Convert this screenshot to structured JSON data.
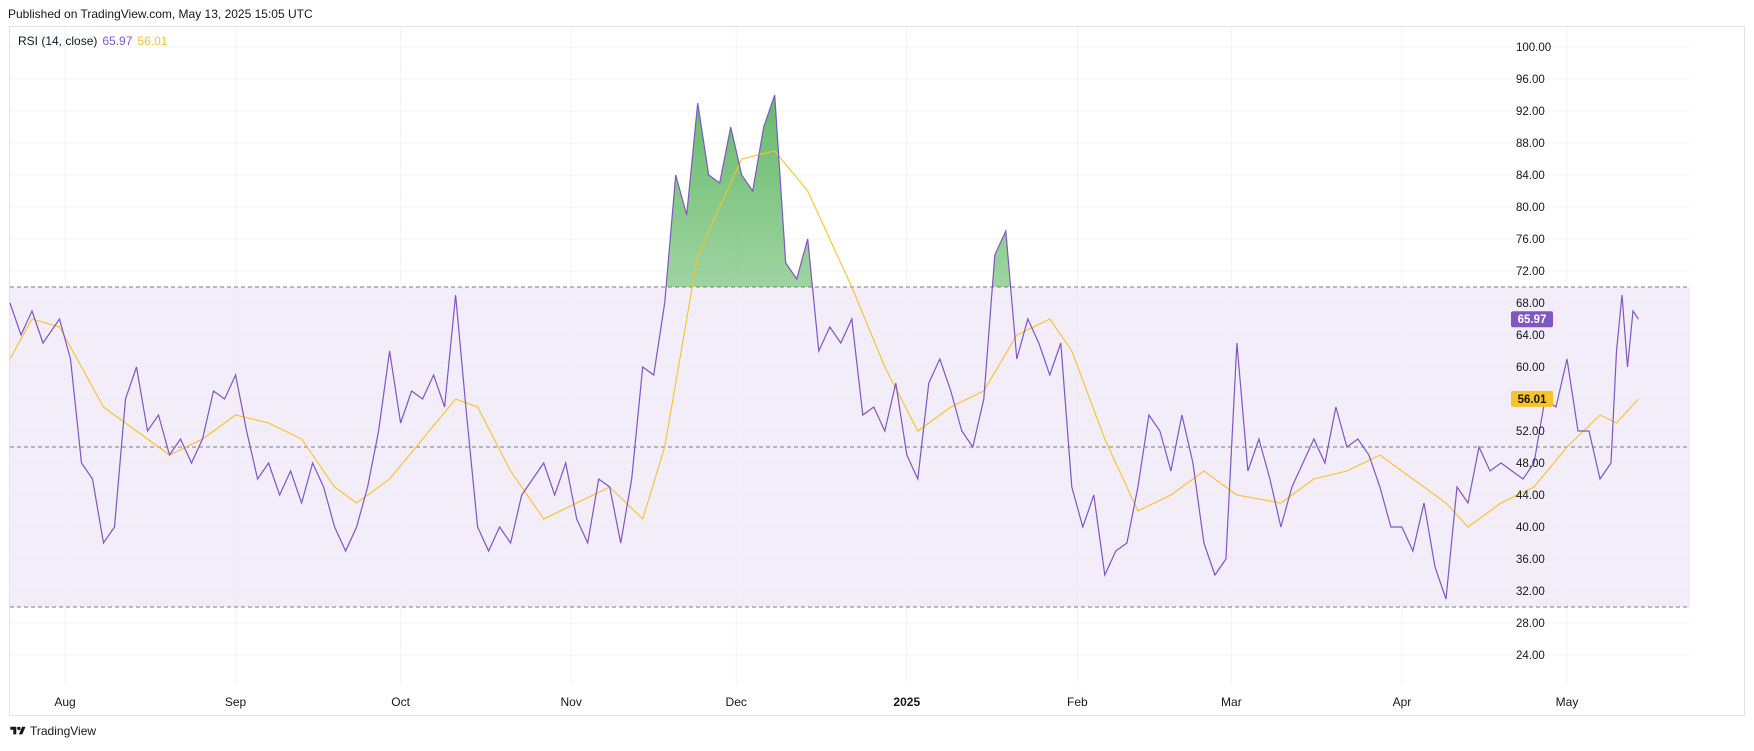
{
  "header": {
    "published": "Published on TradingView.com, May 13, 2025 15:05 UTC"
  },
  "legend": {
    "name": "RSI (14, close)",
    "rsi_value": "65.97",
    "ma_value": "56.01"
  },
  "footer": {
    "brand": "TradingView",
    "logo_icon": "tradingview-logo-icon"
  },
  "colors": {
    "rsi": "#7e57c2",
    "ma": "#f7c325",
    "band_fill": "#ede7f6",
    "overbought_fill": "#4caf50",
    "grid": "#f0f3fa",
    "band_line": "#787b86"
  },
  "chart_data": {
    "type": "line",
    "title": "RSI (14, close)",
    "ylim": [
      24,
      100
    ],
    "y_ticks": [
      "100.00",
      "96.00",
      "92.00",
      "88.00",
      "84.00",
      "80.00",
      "76.00",
      "72.00",
      "68.00",
      "64.00",
      "60.00",
      "56.00",
      "52.00",
      "48.00",
      "44.00",
      "40.00",
      "36.00",
      "32.00",
      "28.00",
      "24.00"
    ],
    "x_ticks": [
      {
        "label": "Aug",
        "bold": false
      },
      {
        "label": "Sep",
        "bold": false
      },
      {
        "label": "Oct",
        "bold": false
      },
      {
        "label": "Nov",
        "bold": false
      },
      {
        "label": "Dec",
        "bold": false
      },
      {
        "label": "2025",
        "bold": true
      },
      {
        "label": "Feb",
        "bold": false
      },
      {
        "label": "Mar",
        "bold": false
      },
      {
        "label": "Apr",
        "bold": false
      },
      {
        "label": "May",
        "bold": false
      }
    ],
    "tick_dates": [
      "2024-08-01",
      "2024-09-01",
      "2024-10-01",
      "2024-11-01",
      "2024-12-01",
      "2025-01-01",
      "2025-02-01",
      "2025-03-01",
      "2025-04-01",
      "2025-05-01"
    ],
    "bands": {
      "upper": 70,
      "middle": 50,
      "lower": 30
    },
    "grid": true,
    "series": [
      {
        "name": "RSI",
        "last_value": "65.97",
        "points": [
          [
            "2024-07-22",
            68
          ],
          [
            "2024-07-24",
            64
          ],
          [
            "2024-07-26",
            67
          ],
          [
            "2024-07-28",
            63
          ],
          [
            "2024-07-31",
            66
          ],
          [
            "2024-08-02",
            61
          ],
          [
            "2024-08-04",
            48
          ],
          [
            "2024-08-06",
            46
          ],
          [
            "2024-08-08",
            38
          ],
          [
            "2024-08-10",
            40
          ],
          [
            "2024-08-12",
            56
          ],
          [
            "2024-08-14",
            60
          ],
          [
            "2024-08-16",
            52
          ],
          [
            "2024-08-18",
            54
          ],
          [
            "2024-08-20",
            49
          ],
          [
            "2024-08-22",
            51
          ],
          [
            "2024-08-24",
            48
          ],
          [
            "2024-08-26",
            51
          ],
          [
            "2024-08-28",
            57
          ],
          [
            "2024-08-30",
            56
          ],
          [
            "2024-09-01",
            59
          ],
          [
            "2024-09-03",
            52
          ],
          [
            "2024-09-05",
            46
          ],
          [
            "2024-09-07",
            48
          ],
          [
            "2024-09-09",
            44
          ],
          [
            "2024-09-11",
            47
          ],
          [
            "2024-09-13",
            43
          ],
          [
            "2024-09-15",
            48
          ],
          [
            "2024-09-17",
            45
          ],
          [
            "2024-09-19",
            40
          ],
          [
            "2024-09-21",
            37
          ],
          [
            "2024-09-23",
            40
          ],
          [
            "2024-09-25",
            45
          ],
          [
            "2024-09-27",
            52
          ],
          [
            "2024-09-29",
            62
          ],
          [
            "2024-10-01",
            53
          ],
          [
            "2024-10-03",
            57
          ],
          [
            "2024-10-05",
            56
          ],
          [
            "2024-10-07",
            59
          ],
          [
            "2024-10-09",
            55
          ],
          [
            "2024-10-11",
            69
          ],
          [
            "2024-10-13",
            54
          ],
          [
            "2024-10-15",
            40
          ],
          [
            "2024-10-17",
            37
          ],
          [
            "2024-10-19",
            40
          ],
          [
            "2024-10-21",
            38
          ],
          [
            "2024-10-23",
            44
          ],
          [
            "2024-10-25",
            46
          ],
          [
            "2024-10-27",
            48
          ],
          [
            "2024-10-29",
            44
          ],
          [
            "2024-10-31",
            48
          ],
          [
            "2024-11-02",
            41
          ],
          [
            "2024-11-04",
            38
          ],
          [
            "2024-11-06",
            46
          ],
          [
            "2024-11-08",
            45
          ],
          [
            "2024-11-10",
            38
          ],
          [
            "2024-11-12",
            46
          ],
          [
            "2024-11-14",
            60
          ],
          [
            "2024-11-16",
            59
          ],
          [
            "2024-11-18",
            68
          ],
          [
            "2024-11-20",
            84
          ],
          [
            "2024-11-22",
            79
          ],
          [
            "2024-11-24",
            93
          ],
          [
            "2024-11-26",
            84
          ],
          [
            "2024-11-28",
            83
          ],
          [
            "2024-11-30",
            90
          ],
          [
            "2024-12-02",
            84
          ],
          [
            "2024-12-04",
            82
          ],
          [
            "2024-12-06",
            90
          ],
          [
            "2024-12-08",
            94
          ],
          [
            "2024-12-10",
            73
          ],
          [
            "2024-12-12",
            71
          ],
          [
            "2024-12-14",
            76
          ],
          [
            "2024-12-16",
            62
          ],
          [
            "2024-12-18",
            65
          ],
          [
            "2024-12-20",
            63
          ],
          [
            "2024-12-22",
            66
          ],
          [
            "2024-12-24",
            54
          ],
          [
            "2024-12-26",
            55
          ],
          [
            "2024-12-28",
            52
          ],
          [
            "2024-12-30",
            58
          ],
          [
            "2025-01-01",
            49
          ],
          [
            "2025-01-03",
            46
          ],
          [
            "2025-01-05",
            58
          ],
          [
            "2025-01-07",
            61
          ],
          [
            "2025-01-09",
            57
          ],
          [
            "2025-01-11",
            52
          ],
          [
            "2025-01-13",
            50
          ],
          [
            "2025-01-15",
            56
          ],
          [
            "2025-01-17",
            74
          ],
          [
            "2025-01-19",
            77
          ],
          [
            "2025-01-21",
            61
          ],
          [
            "2025-01-23",
            66
          ],
          [
            "2025-01-25",
            63
          ],
          [
            "2025-01-27",
            59
          ],
          [
            "2025-01-29",
            63
          ],
          [
            "2025-01-31",
            45
          ],
          [
            "2025-02-02",
            40
          ],
          [
            "2025-02-04",
            44
          ],
          [
            "2025-02-06",
            34
          ],
          [
            "2025-02-08",
            37
          ],
          [
            "2025-02-10",
            38
          ],
          [
            "2025-02-12",
            45
          ],
          [
            "2025-02-14",
            54
          ],
          [
            "2025-02-16",
            52
          ],
          [
            "2025-02-18",
            47
          ],
          [
            "2025-02-20",
            54
          ],
          [
            "2025-02-22",
            48
          ],
          [
            "2025-02-24",
            38
          ],
          [
            "2025-02-26",
            34
          ],
          [
            "2025-02-28",
            36
          ],
          [
            "2025-03-02",
            63
          ],
          [
            "2025-03-04",
            47
          ],
          [
            "2025-03-06",
            51
          ],
          [
            "2025-03-08",
            46
          ],
          [
            "2025-03-10",
            40
          ],
          [
            "2025-03-12",
            45
          ],
          [
            "2025-03-14",
            48
          ],
          [
            "2025-03-16",
            51
          ],
          [
            "2025-03-18",
            48
          ],
          [
            "2025-03-20",
            55
          ],
          [
            "2025-03-22",
            50
          ],
          [
            "2025-03-24",
            51
          ],
          [
            "2025-03-26",
            49
          ],
          [
            "2025-03-28",
            45
          ],
          [
            "2025-03-30",
            40
          ],
          [
            "2025-04-01",
            40
          ],
          [
            "2025-04-03",
            37
          ],
          [
            "2025-04-05",
            43
          ],
          [
            "2025-04-07",
            35
          ],
          [
            "2025-04-09",
            31
          ],
          [
            "2025-04-11",
            45
          ],
          [
            "2025-04-13",
            43
          ],
          [
            "2025-04-15",
            50
          ],
          [
            "2025-04-17",
            47
          ],
          [
            "2025-04-19",
            48
          ],
          [
            "2025-04-21",
            47
          ],
          [
            "2025-04-23",
            46
          ],
          [
            "2025-04-25",
            48
          ],
          [
            "2025-04-27",
            56
          ],
          [
            "2025-04-29",
            55
          ],
          [
            "2025-05-01",
            61
          ],
          [
            "2025-05-03",
            52
          ],
          [
            "2025-05-05",
            52
          ],
          [
            "2025-05-07",
            46
          ],
          [
            "2025-05-09",
            48
          ],
          [
            "2025-05-10",
            62
          ],
          [
            "2025-05-11",
            69
          ],
          [
            "2025-05-12",
            60
          ],
          [
            "2025-05-13",
            67
          ],
          [
            "2025-05-14",
            65.97
          ]
        ]
      },
      {
        "name": "RSI-based MA",
        "last_value": "56.01",
        "points": [
          [
            "2024-07-22",
            61
          ],
          [
            "2024-07-26",
            66
          ],
          [
            "2024-07-31",
            65
          ],
          [
            "2024-08-04",
            60
          ],
          [
            "2024-08-08",
            55
          ],
          [
            "2024-08-14",
            52
          ],
          [
            "2024-08-20",
            49
          ],
          [
            "2024-08-26",
            51
          ],
          [
            "2024-09-01",
            54
          ],
          [
            "2024-09-07",
            53
          ],
          [
            "2024-09-13",
            51
          ],
          [
            "2024-09-19",
            45
          ],
          [
            "2024-09-23",
            43
          ],
          [
            "2024-09-29",
            46
          ],
          [
            "2024-10-05",
            51
          ],
          [
            "2024-10-11",
            56
          ],
          [
            "2024-10-15",
            55
          ],
          [
            "2024-10-21",
            47
          ],
          [
            "2024-10-27",
            41
          ],
          [
            "2024-11-02",
            43
          ],
          [
            "2024-11-08",
            45
          ],
          [
            "2024-11-14",
            41
          ],
          [
            "2024-11-18",
            50
          ],
          [
            "2024-11-24",
            74
          ],
          [
            "2024-12-02",
            86
          ],
          [
            "2024-12-08",
            87
          ],
          [
            "2024-12-14",
            82
          ],
          [
            "2024-12-22",
            70
          ],
          [
            "2024-12-28",
            60
          ],
          [
            "2025-01-03",
            52
          ],
          [
            "2025-01-09",
            55
          ],
          [
            "2025-01-15",
            57
          ],
          [
            "2025-01-21",
            64
          ],
          [
            "2025-01-27",
            66
          ],
          [
            "2025-01-31",
            62
          ],
          [
            "2025-02-06",
            51
          ],
          [
            "2025-02-12",
            42
          ],
          [
            "2025-02-18",
            44
          ],
          [
            "2025-02-24",
            47
          ],
          [
            "2025-03-02",
            44
          ],
          [
            "2025-03-10",
            43
          ],
          [
            "2025-03-16",
            46
          ],
          [
            "2025-03-22",
            47
          ],
          [
            "2025-03-28",
            49
          ],
          [
            "2025-04-03",
            46
          ],
          [
            "2025-04-09",
            43
          ],
          [
            "2025-04-13",
            40
          ],
          [
            "2025-04-19",
            43
          ],
          [
            "2025-04-25",
            45
          ],
          [
            "2025-05-01",
            50
          ],
          [
            "2025-05-07",
            54
          ],
          [
            "2025-05-10",
            53
          ],
          [
            "2025-05-14",
            56.01
          ]
        ]
      }
    ]
  }
}
